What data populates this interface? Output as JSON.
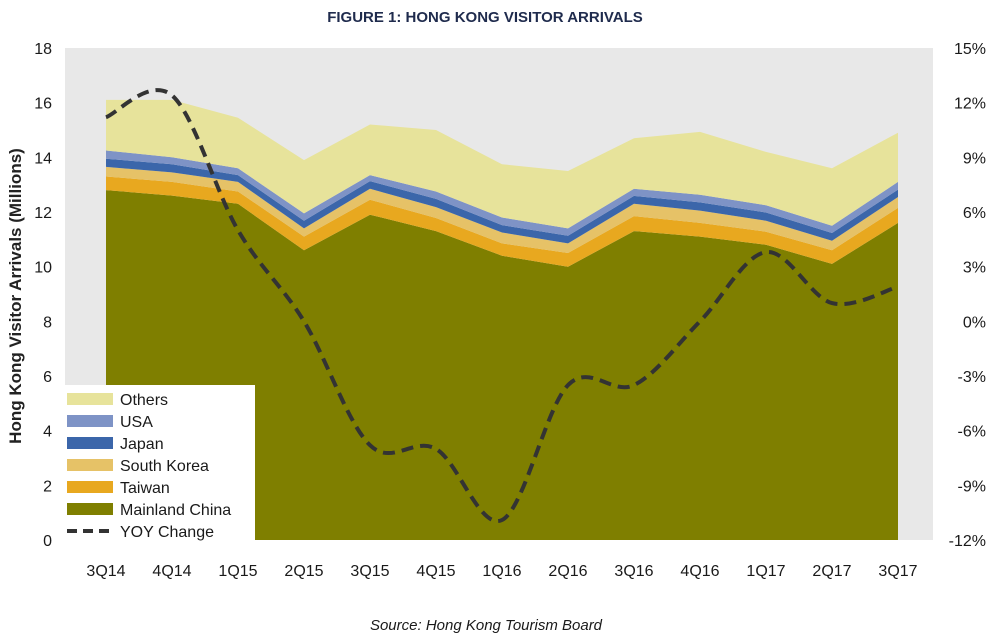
{
  "chart_data": {
    "type": "area",
    "title": "FIGURE 1: HONG KONG VISITOR ARRIVALS",
    "ylabel": "Hong Kong Visitor Arrivals (Millions)",
    "y2label": "",
    "source": "Source: Hong Kong Tourism Board",
    "categories": [
      "3Q14",
      "4Q14",
      "1Q15",
      "2Q15",
      "3Q15",
      "4Q15",
      "1Q16",
      "2Q16",
      "3Q16",
      "4Q16",
      "1Q17",
      "2Q17",
      "3Q17"
    ],
    "ylim": [
      0,
      18
    ],
    "yticks": [
      0,
      2,
      4,
      6,
      8,
      10,
      12,
      14,
      16,
      18
    ],
    "y2lim": [
      -12,
      15
    ],
    "y2ticks": [
      "-12%",
      "-9%",
      "-6%",
      "-3%",
      "0%",
      "3%",
      "6%",
      "9%",
      "12%",
      "15%"
    ],
    "y2tick_values": [
      -12,
      -9,
      -6,
      -3,
      0,
      3,
      6,
      9,
      12,
      15
    ],
    "legend_position": "bottom-left",
    "series": [
      {
        "name": "Mainland China",
        "color": "#7f7f00",
        "values": [
          12.8,
          12.6,
          12.3,
          10.6,
          11.9,
          11.3,
          10.4,
          10.0,
          11.3,
          11.1,
          10.8,
          10.1,
          11.6
        ]
      },
      {
        "name": "Taiwan",
        "color": "#e8a81f",
        "values": [
          0.5,
          0.5,
          0.45,
          0.5,
          0.55,
          0.48,
          0.45,
          0.5,
          0.55,
          0.5,
          0.48,
          0.5,
          0.55
        ]
      },
      {
        "name": "South Korea",
        "color": "#e6c267",
        "values": [
          0.35,
          0.35,
          0.35,
          0.3,
          0.4,
          0.4,
          0.4,
          0.35,
          0.45,
          0.45,
          0.4,
          0.35,
          0.4
        ]
      },
      {
        "name": "Japan",
        "color": "#3b66aa",
        "values": [
          0.3,
          0.3,
          0.25,
          0.28,
          0.28,
          0.3,
          0.27,
          0.28,
          0.29,
          0.3,
          0.3,
          0.28,
          0.27
        ]
      },
      {
        "name": "USA",
        "color": "#7e93c6",
        "values": [
          0.3,
          0.25,
          0.25,
          0.27,
          0.22,
          0.27,
          0.28,
          0.27,
          0.26,
          0.28,
          0.27,
          0.27,
          0.28
        ]
      },
      {
        "name": "Others",
        "color": "#e7e39b",
        "values": [
          1.85,
          2.1,
          1.85,
          1.95,
          1.85,
          2.25,
          1.95,
          2.1,
          1.85,
          2.3,
          1.95,
          2.1,
          1.8
        ]
      }
    ],
    "line_series": {
      "name": "YOY Change",
      "axis": "secondary",
      "color": "#333333",
      "style": "dashed",
      "values": [
        11.2,
        12.4,
        5.0,
        0.0,
        -6.8,
        -7.0,
        -10.9,
        -3.5,
        -3.5,
        0.0,
        3.8,
        1.0,
        1.9
      ]
    },
    "legend_order": [
      "Others",
      "USA",
      "Japan",
      "South Korea",
      "Taiwan",
      "Mainland China",
      "YOY Change"
    ],
    "grid": false
  }
}
